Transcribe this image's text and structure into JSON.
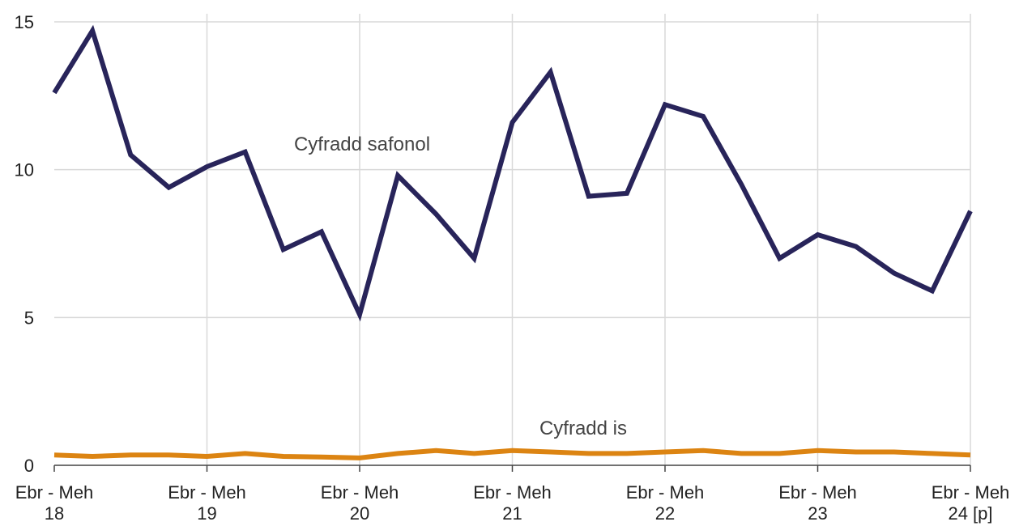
{
  "chart_data": {
    "type": "line",
    "categories": [
      [
        "Ebr - Meh",
        "18"
      ],
      null,
      null,
      null,
      [
        "Ebr - Meh",
        "19"
      ],
      null,
      null,
      null,
      [
        "Ebr - Meh",
        "20"
      ],
      null,
      null,
      null,
      [
        "Ebr - Meh",
        "21"
      ],
      null,
      null,
      null,
      [
        "Ebr - Meh",
        "22"
      ],
      null,
      null,
      null,
      [
        "Ebr - Meh",
        "23"
      ],
      null,
      null,
      null,
      [
        "Ebr - Meh",
        "24 [p]"
      ]
    ],
    "series": [
      {
        "name": "Cyfradd safonol",
        "color": "#28245a",
        "values": [
          12.6,
          14.7,
          10.5,
          9.4,
          10.1,
          10.6,
          7.3,
          7.9,
          5.1,
          9.8,
          8.5,
          7.0,
          11.6,
          13.3,
          9.1,
          9.2,
          12.2,
          11.8,
          9.5,
          7.0,
          7.8,
          7.4,
          6.5,
          5.9,
          8.6
        ]
      },
      {
        "name": "Cyfradd is",
        "color": "#dc8412",
        "values": [
          0.35,
          0.3,
          0.35,
          0.35,
          0.3,
          0.4,
          0.3,
          0.28,
          0.25,
          0.4,
          0.5,
          0.4,
          0.5,
          0.45,
          0.4,
          0.4,
          0.45,
          0.5,
          0.4,
          0.4,
          0.5,
          0.45,
          0.45,
          0.4,
          0.35
        ]
      }
    ],
    "ylim": [
      0,
      15
    ],
    "yticks": [
      0,
      5,
      10,
      15
    ],
    "grid": true
  }
}
